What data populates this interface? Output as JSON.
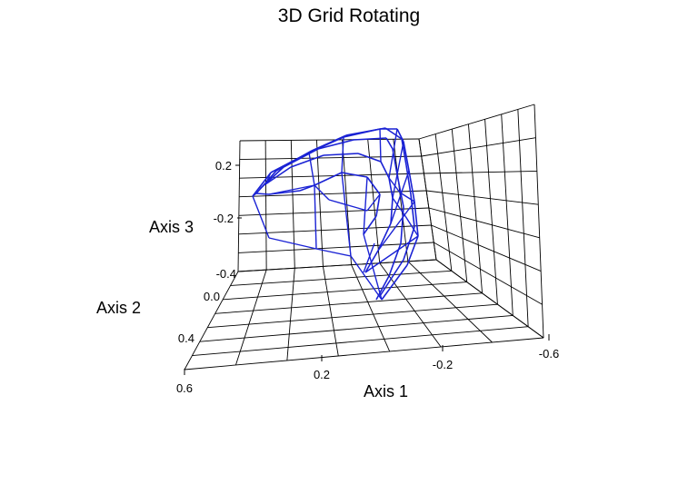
{
  "chart_data": {
    "type": "3d-wireframe",
    "title": "3D Grid Rotating",
    "axes": {
      "axis1": {
        "label": "Axis 1",
        "ticks": [
          "0.6",
          "0.2",
          "-0.2",
          "-0.6"
        ]
      },
      "axis2": {
        "label": "Axis 2",
        "ticks": [
          "-0.4",
          "0.0",
          "0.4"
        ]
      },
      "axis3": {
        "label": "Axis 3",
        "ticks": [
          "0.2",
          "-0.2"
        ]
      }
    },
    "grid": true,
    "series": [
      {
        "color": "#1a22d4"
      }
    ]
  }
}
